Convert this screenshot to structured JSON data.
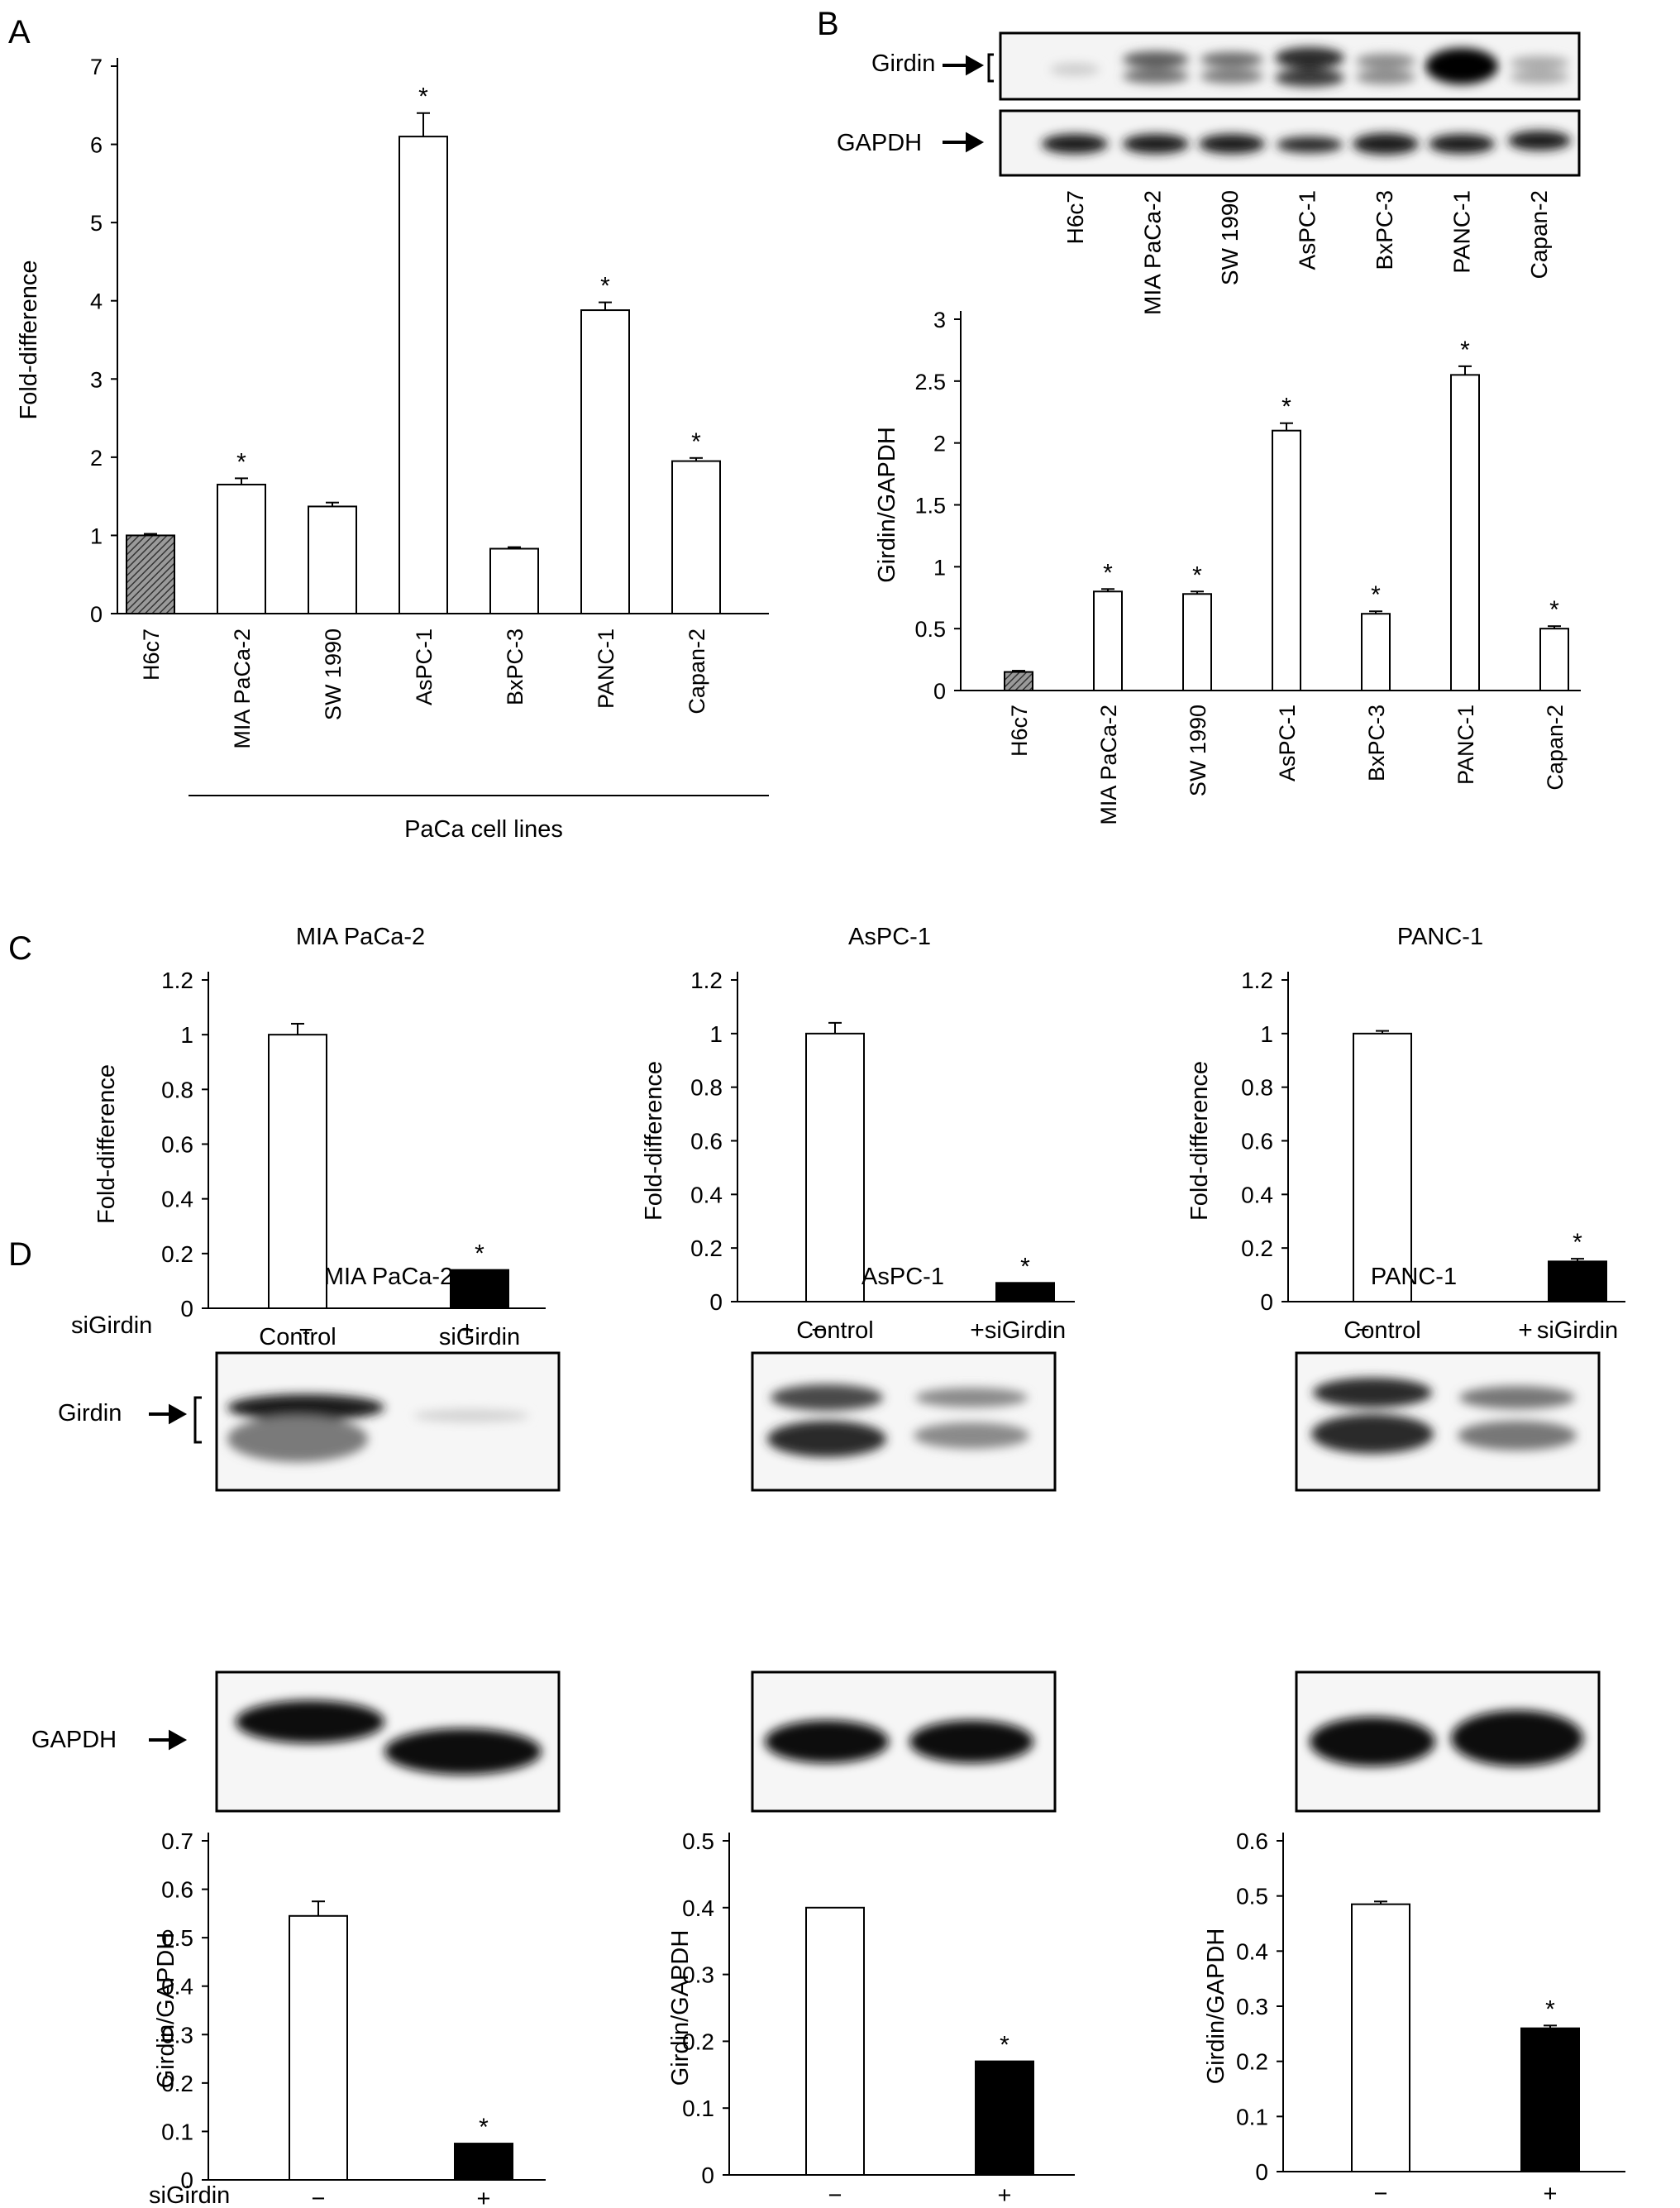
{
  "panel_letters": [
    "A",
    "B",
    "C",
    "D"
  ],
  "panel_B_blot": {
    "band_labels": [
      "Girdin",
      "GAPDH"
    ],
    "lane_labels": [
      "H6c7",
      "MIA PaCa-2",
      "SW 1990",
      "AsPC-1",
      "BxPC-3",
      "PANC-1",
      "Capan-2"
    ]
  },
  "panel_D_blot": {
    "treatment_label": "siGirdin",
    "signs": [
      "−",
      "+"
    ],
    "band_labels": [
      "Girdin",
      "GAPDH"
    ],
    "titles": [
      "MIA PaCa-2",
      "AsPC-1",
      "PANC-1"
    ]
  },
  "colors": {
    "reference_bar": "#777777",
    "control_bar": "#ffffff",
    "sigirdin_bar": "#000000",
    "axis": "#000000"
  },
  "chart_data": [
    {
      "id": "A",
      "type": "bar",
      "title": "",
      "ylabel": "Fold-difference",
      "group_label": "PaCa cell lines",
      "categories": [
        "H6c7",
        "MIA PaCa-2",
        "SW 1990",
        "AsPC-1",
        "BxPC-3",
        "PANC-1",
        "Capan-2"
      ],
      "values": [
        1.0,
        1.65,
        1.37,
        6.1,
        0.83,
        3.88,
        1.95
      ],
      "errors": [
        0.02,
        0.08,
        0.05,
        0.3,
        0.02,
        0.1,
        0.04
      ],
      "significant": [
        false,
        true,
        false,
        true,
        false,
        true,
        true
      ],
      "fills": [
        "hatch",
        "white",
        "white",
        "white",
        "white",
        "white",
        "white"
      ],
      "ylim": [
        0,
        7
      ],
      "yticks": [
        0,
        1,
        2,
        3,
        4,
        5,
        6,
        7
      ],
      "marker": "*"
    },
    {
      "id": "B",
      "type": "bar",
      "title": "",
      "ylabel": "Girdin/GAPDH",
      "categories": [
        "H6c7",
        "MIA PaCa-2",
        "SW 1990",
        "AsPC-1",
        "BxPC-3",
        "PANC-1",
        "Capan-2"
      ],
      "values": [
        0.15,
        0.8,
        0.78,
        2.1,
        0.62,
        2.55,
        0.5
      ],
      "errors": [
        0.01,
        0.02,
        0.02,
        0.06,
        0.02,
        0.07,
        0.02
      ],
      "significant": [
        false,
        true,
        true,
        true,
        true,
        true,
        true
      ],
      "fills": [
        "hatch",
        "white",
        "white",
        "white",
        "white",
        "white",
        "white"
      ],
      "ylim": [
        0,
        3
      ],
      "yticks": [
        "0",
        "0.5",
        "1",
        "1.5",
        "2",
        "2.5",
        "3"
      ],
      "marker": "*"
    },
    {
      "id": "C1",
      "type": "bar",
      "title": "MIA PaCa-2",
      "ylabel": "Fold-difference",
      "categories": [
        "Control",
        "siGirdin"
      ],
      "values": [
        1.0,
        0.14
      ],
      "errors": [
        0.04,
        0.0
      ],
      "significant": [
        false,
        true
      ],
      "fills": [
        "white",
        "black"
      ],
      "ylim": [
        0,
        1.2
      ],
      "yticks": [
        "0",
        "0.2",
        "0.4",
        "0.6",
        "0.8",
        "1",
        "1.2"
      ],
      "marker": "*"
    },
    {
      "id": "C2",
      "type": "bar",
      "title": "AsPC-1",
      "ylabel": "Fold-difference",
      "categories": [
        "Control",
        "siGirdin"
      ],
      "values": [
        1.0,
        0.07
      ],
      "errors": [
        0.04,
        0.0
      ],
      "significant": [
        false,
        true
      ],
      "fills": [
        "white",
        "black"
      ],
      "ylim": [
        0,
        1.2
      ],
      "yticks": [
        "0",
        "0.2",
        "0.4",
        "0.6",
        "0.8",
        "1",
        "1.2"
      ],
      "marker": "*"
    },
    {
      "id": "C3",
      "type": "bar",
      "title": "PANC-1",
      "ylabel": "Fold-difference",
      "categories": [
        "Control",
        "siGirdin"
      ],
      "values": [
        1.0,
        0.15
      ],
      "errors": [
        0.01,
        0.01
      ],
      "significant": [
        false,
        true
      ],
      "fills": [
        "white",
        "black"
      ],
      "ylim": [
        0,
        1.2
      ],
      "yticks": [
        "0",
        "0.2",
        "0.4",
        "0.6",
        "0.8",
        "1",
        "1.2"
      ],
      "marker": "*"
    },
    {
      "id": "D1",
      "type": "bar",
      "title": "",
      "ylabel": "Girdin/GAPDH",
      "categories": [
        "−",
        "+"
      ],
      "values": [
        0.545,
        0.075
      ],
      "errors": [
        0.03,
        0.0
      ],
      "significant": [
        false,
        true
      ],
      "fills": [
        "white",
        "black"
      ],
      "ylim": [
        0,
        0.7
      ],
      "yticks": [
        "0",
        "0.1",
        "0.2",
        "0.3",
        "0.4",
        "0.5",
        "0.6",
        "0.7"
      ],
      "marker": "*"
    },
    {
      "id": "D2",
      "type": "bar",
      "title": "",
      "ylabel": "Girdin/GAPDH",
      "categories": [
        "−",
        "+"
      ],
      "values": [
        0.4,
        0.17
      ],
      "errors": [
        0.0,
        0.0
      ],
      "significant": [
        false,
        true
      ],
      "fills": [
        "white",
        "black"
      ],
      "ylim": [
        0,
        0.5
      ],
      "yticks": [
        "0",
        "0.1",
        "0.2",
        "0.3",
        "0.4",
        "0.5"
      ],
      "marker": "*"
    },
    {
      "id": "D3",
      "type": "bar",
      "title": "",
      "ylabel": "Girdin/GAPDH",
      "categories": [
        "−",
        "+"
      ],
      "values": [
        0.485,
        0.26
      ],
      "errors": [
        0.005,
        0.005
      ],
      "significant": [
        false,
        true
      ],
      "fills": [
        "white",
        "black"
      ],
      "ylim": [
        0,
        0.6
      ],
      "yticks": [
        "0",
        "0.1",
        "0.2",
        "0.3",
        "0.4",
        "0.5",
        "0.6"
      ],
      "marker": "*"
    }
  ]
}
